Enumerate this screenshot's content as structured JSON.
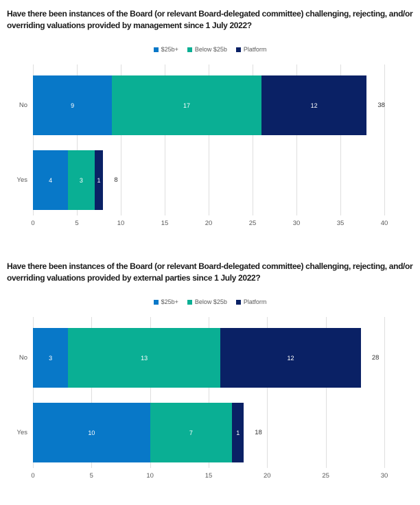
{
  "colors": {
    "series_25b_plus": "#0878c8",
    "series_below_25b": "#0aaf94",
    "series_platform": "#0a2165",
    "gridline": "#dedede",
    "title_text": "#1a1a1a",
    "axis_text": "#595959",
    "total_text": "#333333",
    "segment_value_text": "#ffffff"
  },
  "chart_data": [
    {
      "type": "bar",
      "orientation": "horizontal",
      "stacked": true,
      "title": "Have there been instances of the Board (or relevant Board-delegated committee) challenging, rejecting, and/or overriding valuations provided by management since 1 July 2022?",
      "categories": [
        "No",
        "Yes"
      ],
      "series": [
        {
          "name": "$25b+",
          "color": "#0878c8",
          "values": [
            9,
            4
          ]
        },
        {
          "name": "Below $25b",
          "color": "#0aaf94",
          "values": [
            17,
            3
          ]
        },
        {
          "name": "Platform",
          "color": "#0a2165",
          "values": [
            12,
            1
          ]
        }
      ],
      "totals": [
        38,
        8
      ],
      "xlim": [
        0,
        40
      ],
      "xticks": [
        0,
        5,
        10,
        15,
        20,
        25,
        30,
        35,
        40
      ],
      "legend_position": "top",
      "grid": true
    },
    {
      "type": "bar",
      "orientation": "horizontal",
      "stacked": true,
      "title": "Have there been instances of the Board (or relevant Board-delegated committee) challenging, rejecting, and/or overriding valuations provided by external parties since 1 July 2022?",
      "categories": [
        "No",
        "Yes"
      ],
      "series": [
        {
          "name": "$25b+",
          "color": "#0878c8",
          "values": [
            3,
            10
          ]
        },
        {
          "name": "Below $25b",
          "color": "#0aaf94",
          "values": [
            13,
            7
          ]
        },
        {
          "name": "Platform",
          "color": "#0a2165",
          "values": [
            12,
            1
          ]
        }
      ],
      "totals": [
        28,
        18
      ],
      "xlim": [
        0,
        30
      ],
      "xticks": [
        0,
        5,
        10,
        15,
        20,
        25,
        30
      ],
      "legend_position": "top",
      "grid": true
    }
  ]
}
